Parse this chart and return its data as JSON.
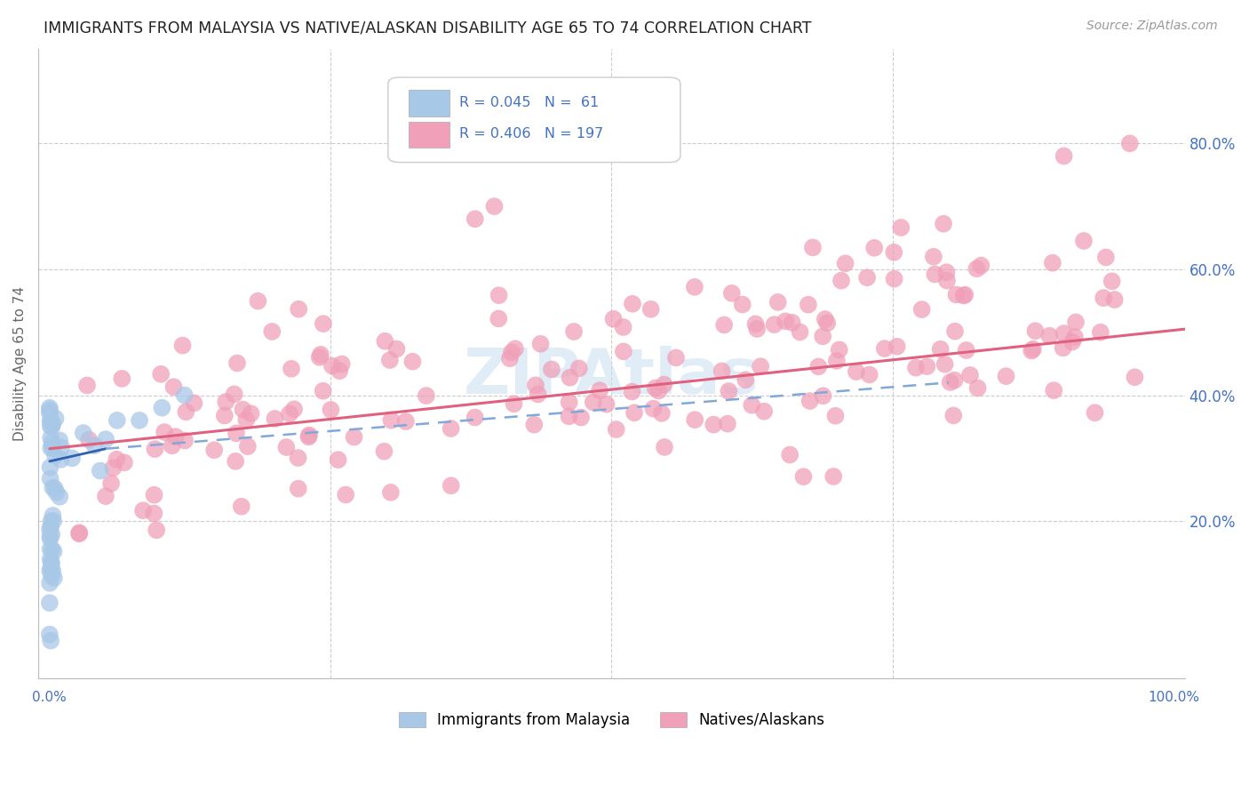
{
  "title": "IMMIGRANTS FROM MALAYSIA VS NATIVE/ALASKAN DISABILITY AGE 65 TO 74 CORRELATION CHART",
  "source": "Source: ZipAtlas.com",
  "ylabel": "Disability Age 65 to 74",
  "xlim": [
    -0.01,
    1.01
  ],
  "ylim": [
    -0.05,
    0.95
  ],
  "ytick_values": [
    0.2,
    0.4,
    0.6,
    0.8
  ],
  "legend_blue_label": "Immigrants from Malaysia",
  "legend_pink_label": "Natives/Alaskans",
  "r_blue": "0.045",
  "n_blue": "61",
  "r_pink": "0.406",
  "n_pink": "197",
  "blue_color": "#a8c8e8",
  "pink_color": "#f0a0b8",
  "blue_line_color": "#3060b0",
  "blue_dash_color": "#80a8d8",
  "pink_line_color": "#e06080",
  "text_color": "#4472c4",
  "title_color": "#222222",
  "background_color": "#ffffff",
  "grid_color": "#cccccc",
  "watermark_color": "#c8dff0"
}
